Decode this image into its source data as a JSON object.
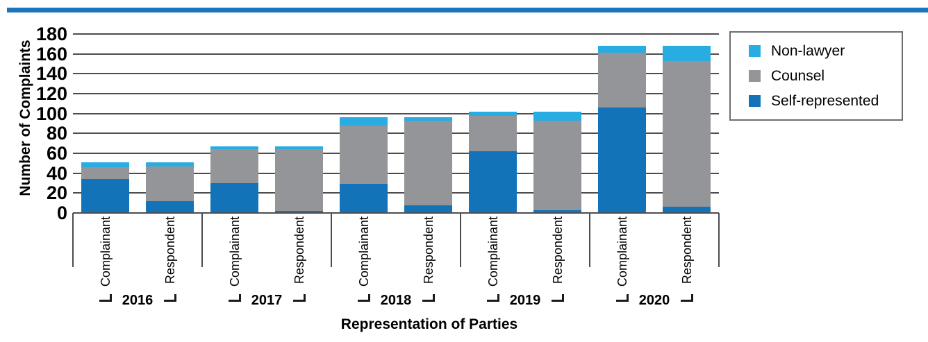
{
  "chart_data": {
    "type": "bar",
    "stacked": true,
    "title": "",
    "xlabel": "Representation of Parties",
    "ylabel": "Number of Complaints",
    "ylim": [
      0,
      180
    ],
    "ytick_step": 20,
    "yticks": [
      0,
      20,
      40,
      60,
      80,
      100,
      120,
      140,
      160,
      180
    ],
    "grid": true,
    "legend_position": "top-right",
    "series": [
      {
        "key": "non_lawyer",
        "label": "Non-lawyer",
        "color": "#29ACE2"
      },
      {
        "key": "counsel",
        "label": "Counsel",
        "color": "#939598"
      },
      {
        "key": "self_represented",
        "label": "Self-represented",
        "color": "#1273B8"
      }
    ],
    "subcategories": [
      "Complainant",
      "Respondent"
    ],
    "groups": [
      {
        "year": "2016",
        "bars": [
          {
            "label": "Complainant",
            "self_represented": 34,
            "counsel": 12,
            "non_lawyer": 5,
            "total": 51
          },
          {
            "label": "Respondent",
            "self_represented": 12,
            "counsel": 35,
            "non_lawyer": 4,
            "total": 51
          }
        ]
      },
      {
        "year": "2017",
        "bars": [
          {
            "label": "Complainant",
            "self_represented": 30,
            "counsel": 34,
            "non_lawyer": 3,
            "total": 67
          },
          {
            "label": "Respondent",
            "self_represented": 2,
            "counsel": 62,
            "non_lawyer": 3,
            "total": 67
          }
        ]
      },
      {
        "year": "2018",
        "bars": [
          {
            "label": "Complainant",
            "self_represented": 29,
            "counsel": 59,
            "non_lawyer": 8,
            "total": 96
          },
          {
            "label": "Respondent",
            "self_represented": 8,
            "counsel": 85,
            "non_lawyer": 3,
            "total": 96
          }
        ]
      },
      {
        "year": "2019",
        "bars": [
          {
            "label": "Complainant",
            "self_represented": 62,
            "counsel": 36,
            "non_lawyer": 4,
            "total": 102
          },
          {
            "label": "Respondent",
            "self_represented": 3,
            "counsel": 90,
            "non_lawyer": 9,
            "total": 102
          }
        ]
      },
      {
        "year": "2020",
        "bars": [
          {
            "label": "Complainant",
            "self_represented": 106,
            "counsel": 55,
            "non_lawyer": 7,
            "total": 168
          },
          {
            "label": "Respondent",
            "self_represented": 6,
            "counsel": 147,
            "non_lawyer": 15,
            "total": 168
          }
        ]
      }
    ],
    "colors": {
      "accent_stripe": "#1B75BC",
      "axis": "#4D4D4F",
      "text": "#000000"
    }
  }
}
